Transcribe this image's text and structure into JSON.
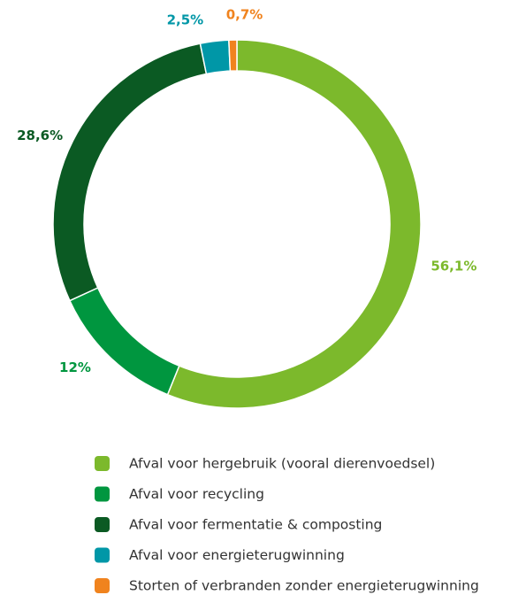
{
  "chart_data": {
    "type": "donut",
    "categories": [
      "Afval voor hergebruik (vooral dierenvoedsel)",
      "Afval voor recycling",
      "Afval voor fermentatie & composting",
      "Afval voor energieterugwinning",
      "Storten of verbranden zonder energieterugwinning"
    ],
    "values": [
      56.1,
      12,
      28.6,
      2.5,
      0.7
    ],
    "value_labels": [
      "56,1%",
      "12%",
      "28,6%",
      "2,5%",
      "0,7%"
    ],
    "colors": [
      "#7cb92c",
      "#00963f",
      "#0b5a23",
      "#0097a7",
      "#f0831e"
    ],
    "legend": "bottom"
  }
}
